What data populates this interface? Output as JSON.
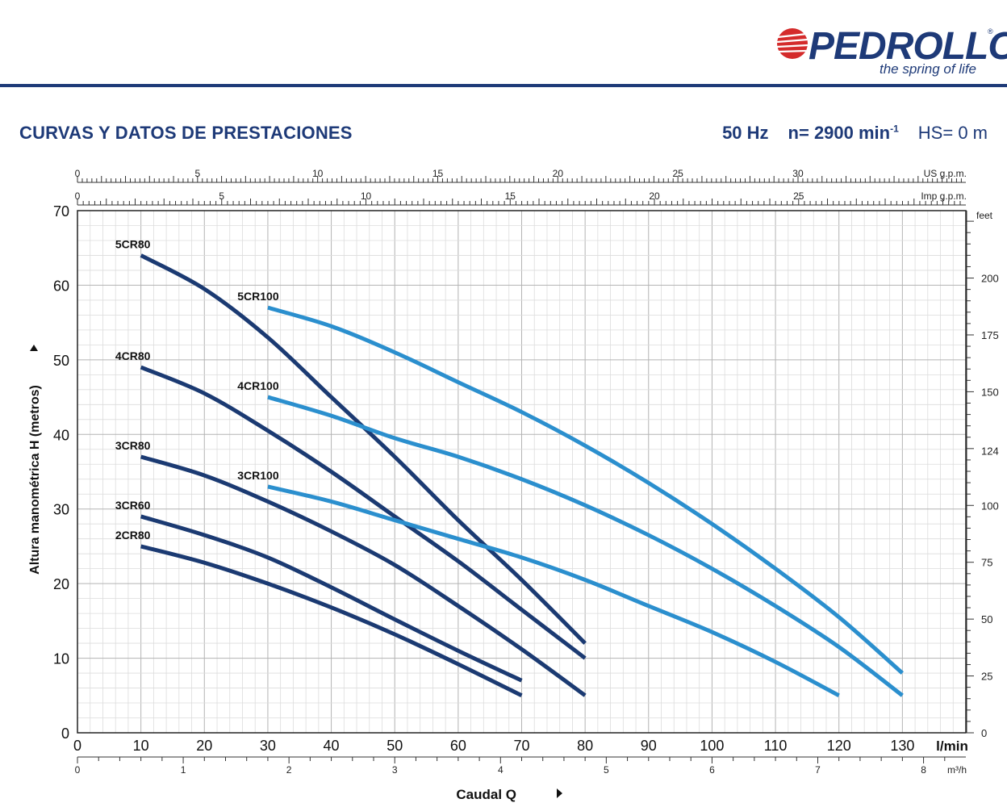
{
  "brand": {
    "name": "PEDROLLO",
    "registered": "®",
    "tagline": "the spring of life"
  },
  "header": {
    "title": "CURVAS Y DATOS DE PRESTACIONES",
    "freq": "50 Hz",
    "speed_prefix": "n= 2900 min",
    "speed_exp": "-1",
    "hs": "HS= 0 m"
  },
  "colors": {
    "brand_blue": "#1e3a78",
    "curve_dark": "#1b3a72",
    "curve_light": "#2b8fce",
    "grid_major": "#b3b3b3",
    "grid_minor": "#dcdcdc"
  },
  "chart_data": {
    "type": "line",
    "title": "",
    "xlabel": "Caudal Q",
    "ylabel": "Altura manométrica H (metros)",
    "x_unit": "l/min",
    "xlim": [
      0,
      140
    ],
    "ylim": [
      0,
      70
    ],
    "grid": true,
    "x_ticks": [
      0,
      10,
      20,
      30,
      40,
      50,
      60,
      70,
      80,
      90,
      100,
      110,
      120,
      130
    ],
    "y_ticks": [
      0,
      10,
      20,
      30,
      40,
      50,
      60,
      70
    ],
    "secondary_axes": {
      "us_gpm": {
        "label": "US g.p.m.",
        "ticks": [
          0,
          5,
          10,
          15,
          20,
          25,
          30
        ]
      },
      "imp_gpm": {
        "label": "Imp g.p.m.",
        "ticks": [
          0,
          5,
          10,
          15,
          20,
          25
        ]
      },
      "m3h": {
        "label": "m³/h",
        "ticks": [
          0,
          1,
          2,
          3,
          4,
          5,
          6,
          7,
          8
        ]
      },
      "feet": {
        "label": "feet",
        "ticks": [
          0,
          25,
          50,
          75,
          100,
          124,
          150,
          175,
          200
        ]
      }
    },
    "series": [
      {
        "name": "5CR80",
        "color": "dark",
        "x": [
          10,
          20,
          30,
          40,
          50,
          60,
          70,
          80
        ],
        "y": [
          64,
          59.5,
          53,
          45,
          37,
          28.5,
          20.5,
          12
        ]
      },
      {
        "name": "4CR80",
        "color": "dark",
        "x": [
          10,
          20,
          30,
          40,
          50,
          60,
          70,
          80
        ],
        "y": [
          49,
          45.5,
          40.5,
          35,
          29,
          23,
          16.5,
          10
        ]
      },
      {
        "name": "3CR80",
        "color": "dark",
        "x": [
          10,
          20,
          30,
          40,
          50,
          60,
          70,
          80
        ],
        "y": [
          37,
          34.5,
          31,
          27,
          22.5,
          17,
          11.2,
          5
        ]
      },
      {
        "name": "3CR60",
        "color": "dark",
        "x": [
          10,
          20,
          30,
          40,
          50,
          60,
          70
        ],
        "y": [
          29,
          26.5,
          23.5,
          19.5,
          15.2,
          11,
          7
        ]
      },
      {
        "name": "2CR80",
        "color": "dark",
        "x": [
          10,
          20,
          30,
          40,
          50,
          60,
          70
        ],
        "y": [
          25,
          22.8,
          20,
          16.8,
          13.2,
          9.2,
          5
        ]
      },
      {
        "name": "5CR100",
        "color": "light",
        "x": [
          30,
          40,
          50,
          60,
          70,
          80,
          90,
          100,
          110,
          120,
          130
        ],
        "y": [
          57,
          54.5,
          51,
          47,
          43,
          38.5,
          33.5,
          28,
          22,
          15.5,
          8
        ]
      },
      {
        "name": "4CR100",
        "color": "light",
        "x": [
          30,
          40,
          50,
          60,
          70,
          80,
          90,
          100,
          110,
          120,
          130
        ],
        "y": [
          45,
          42.5,
          39.5,
          37,
          34,
          30.5,
          26.5,
          22,
          17,
          11.5,
          5
        ]
      },
      {
        "name": "3CR100",
        "color": "light",
        "x": [
          30,
          40,
          50,
          60,
          70,
          80,
          90,
          100,
          110,
          120
        ],
        "y": [
          33,
          31,
          28.5,
          26,
          23.5,
          20.5,
          17,
          13.5,
          9.5,
          5
        ]
      }
    ]
  }
}
